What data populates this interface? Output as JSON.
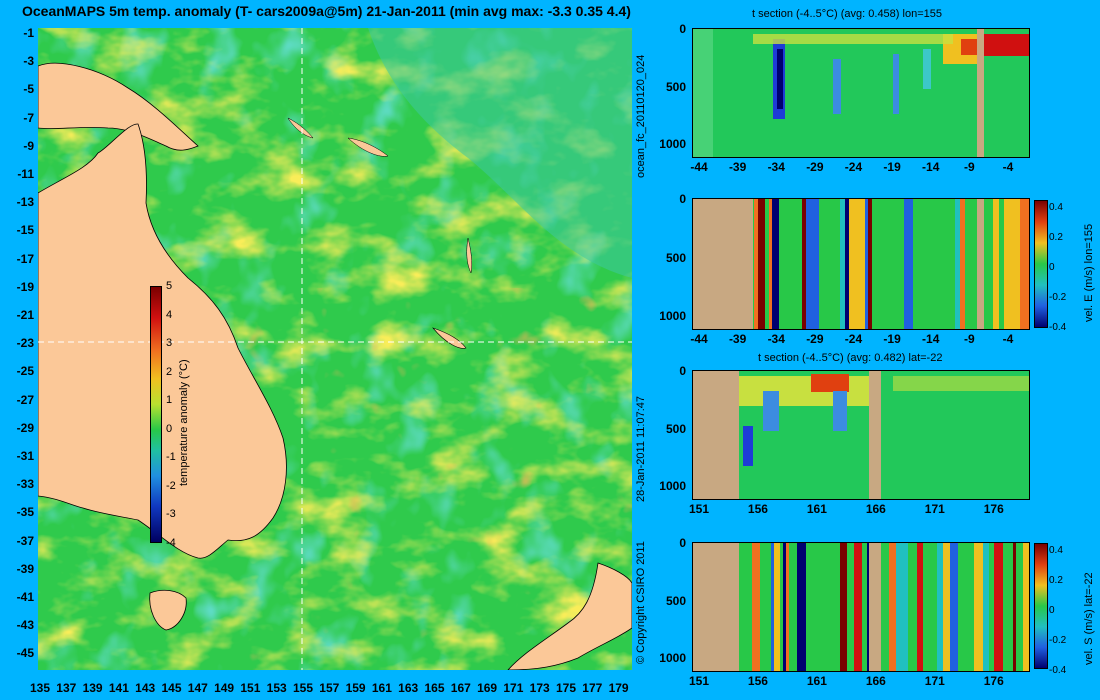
{
  "title": "OceanMAPS 5m temp. anomaly (T- cars2009a@5m) 21-Jan-2011 (min avg max: -3.3 0.35 4.4)",
  "side_labels": {
    "forecast_id": "ocean_fc_20110120_024",
    "generated": "28-Jan-2011 11:07:47",
    "copyright": "© Copyright CSIRO 2011"
  },
  "colors": {
    "background": "#00b4ff",
    "land": "#fbc898",
    "section_land": "#c8a882",
    "ocean_base": "#22c85a"
  },
  "chart_data": [
    {
      "type": "heatmap",
      "name": "map",
      "title": "OceanMAPS 5m temp. anomaly (T- cars2009a@5m) 21-Jan-2011 (min avg max: -3.3 0.35 4.4)",
      "x_ticks": [
        "135",
        "137",
        "139",
        "141",
        "143",
        "145",
        "147",
        "149",
        "151",
        "153",
        "155",
        "157",
        "159",
        "161",
        "163",
        "165",
        "167",
        "169",
        "171",
        "173",
        "175",
        "177",
        "179"
      ],
      "y_ticks": [
        "-1",
        "-3",
        "-5",
        "-7",
        "-9",
        "-11",
        "-13",
        "-15",
        "-17",
        "-19",
        "-21",
        "-23",
        "-25",
        "-27",
        "-29",
        "-31",
        "-33",
        "-35",
        "-37",
        "-39",
        "-41",
        "-43",
        "-45"
      ],
      "xlim": [
        134.5,
        180.5
      ],
      "ylim": [
        -45,
        0
      ],
      "crosshair": {
        "lon": 155,
        "lat": -22
      },
      "stats": {
        "min": -3.3,
        "avg": 0.35,
        "max": 4.4
      },
      "colorbar": {
        "label": "temperature anomaly (°C)",
        "ticks": [
          "5",
          "4",
          "3",
          "2",
          "1",
          "0",
          "-1",
          "-2",
          "-3",
          "-4"
        ],
        "range": [
          -4,
          5
        ]
      }
    },
    {
      "type": "heatmap",
      "name": "t-section-lon",
      "title": "t section (-4..5°C) (avg: 0.458) lon=155",
      "x_ticks": [
        "-44",
        "-39",
        "-34",
        "-29",
        "-24",
        "-19",
        "-14",
        "-9",
        "-4"
      ],
      "y_ticks": [
        "0",
        "500",
        "1000"
      ],
      "avg": 0.458
    },
    {
      "type": "heatmap",
      "name": "u-section-lon",
      "title": "",
      "x_ticks": [
        "-44",
        "-39",
        "-34",
        "-29",
        "-24",
        "-19",
        "-14",
        "-9",
        "-4"
      ],
      "y_ticks": [
        "0",
        "500",
        "1000"
      ],
      "colorbar": {
        "label": "vel. E (m/s) lon=155",
        "ticks": [
          "0.4",
          "0.2",
          "0",
          "-0.2",
          "-0.4"
        ]
      }
    },
    {
      "type": "heatmap",
      "name": "t-section-lat",
      "title": "t section (-4..5°C) (avg: 0.482) lat=-22",
      "x_ticks": [
        "151",
        "156",
        "161",
        "166",
        "171",
        "176"
      ],
      "y_ticks": [
        "0",
        "500",
        "1000"
      ],
      "avg": 0.482
    },
    {
      "type": "heatmap",
      "name": "v-section-lat",
      "title": "",
      "x_ticks": [
        "151",
        "156",
        "161",
        "166",
        "171",
        "176"
      ],
      "y_ticks": [
        "0",
        "500",
        "1000"
      ],
      "colorbar": {
        "label": "vel. S (m/s) lat=-22",
        "ticks": [
          "0.4",
          "0.2",
          "0",
          "-0.2",
          "-0.4"
        ]
      }
    }
  ]
}
